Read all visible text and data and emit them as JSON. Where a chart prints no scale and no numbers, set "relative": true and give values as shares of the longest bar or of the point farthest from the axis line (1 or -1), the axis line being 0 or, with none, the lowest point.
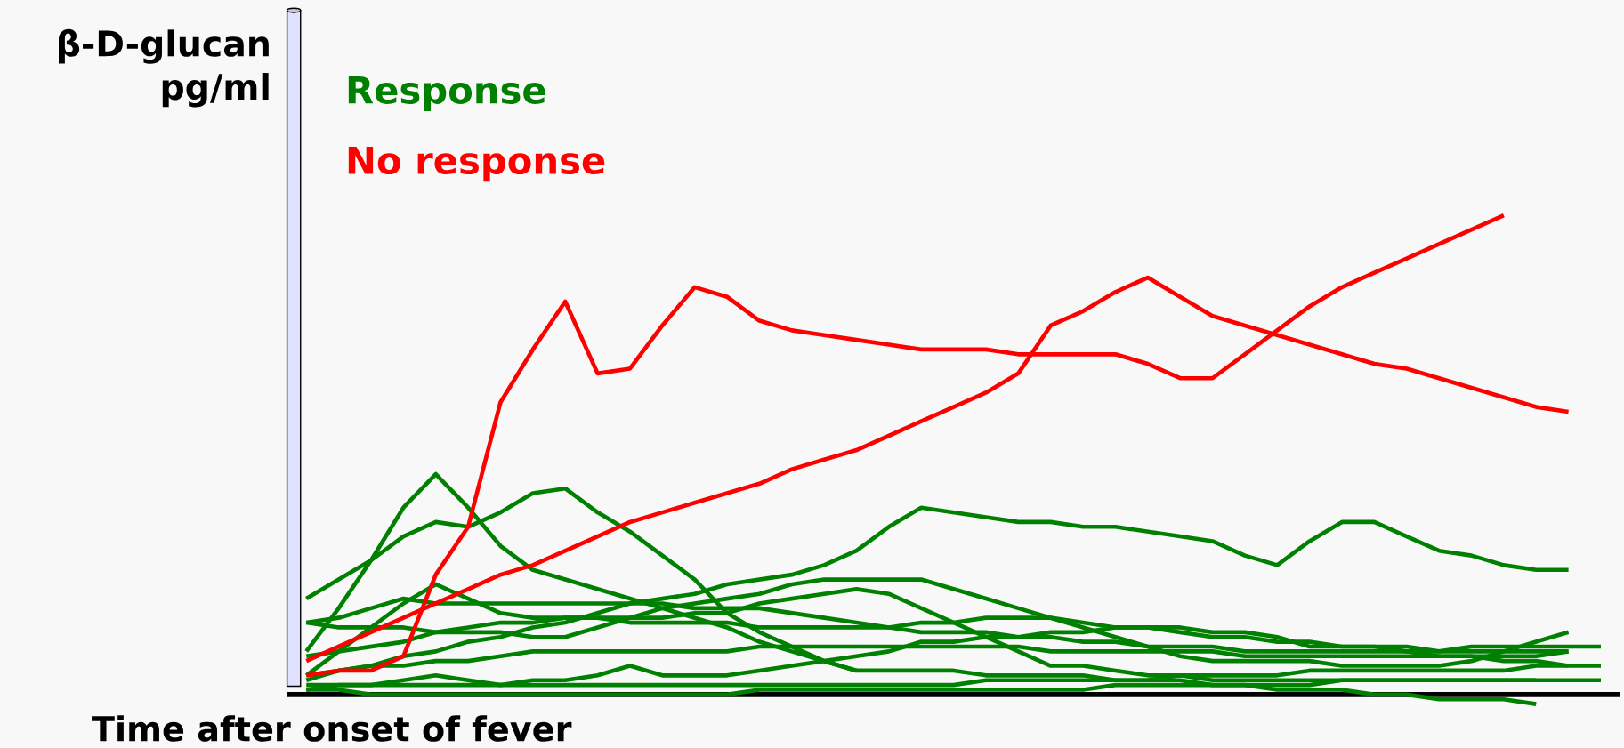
{
  "chart_data": {
    "type": "line",
    "relative": true,
    "xlabel": "Time after onset of fever",
    "ylabel": "β-D-glucan pg/ml",
    "marker": "none",
    "line_style": "solid",
    "categories": [
      null,
      null,
      null,
      null,
      null,
      null,
      null,
      null,
      null,
      null,
      null,
      null,
      null,
      null,
      null,
      null,
      null,
      null,
      null,
      null,
      null,
      null,
      null,
      null,
      null,
      null,
      null,
      null,
      null,
      null,
      null,
      null,
      null,
      null,
      null,
      null,
      null,
      null,
      null,
      null,
      null
    ],
    "series": [
      {
        "name": "Response",
        "color": "#008000",
        "values": [
          0.2,
          0.24,
          0.28,
          0.33,
          0.36,
          0.35,
          0.38,
          0.42,
          0.43,
          0.38,
          0.34,
          0.29,
          0.24,
          0.17,
          0.13,
          0.1,
          0.07,
          0.05,
          null,
          null,
          null,
          null,
          null,
          null,
          null,
          null,
          null,
          null,
          null,
          null,
          null,
          null,
          null,
          null,
          null,
          null,
          null,
          null,
          null,
          null,
          null
        ]
      },
      {
        "color": "#008000",
        "values": [
          0.09,
          0.18,
          0.28,
          0.39,
          0.46,
          0.39,
          0.31,
          0.26,
          0.24,
          0.22,
          0.2,
          0.18,
          0.16,
          0.14,
          0.11,
          0.09,
          0.07,
          0.05,
          0.05,
          0.05,
          0.05,
          0.04,
          0.04,
          0.04,
          0.04,
          0.03,
          0.03,
          0.03,
          0.02,
          0.02,
          0.01,
          0.01,
          0.01,
          0,
          0,
          -0.01,
          -0.01,
          -0.01,
          -0.02,
          null,
          null
        ]
      },
      {
        "color": "#008000",
        "values": [
          0.03,
          0.05,
          0.06,
          0.08,
          0.09,
          0.11,
          0.12,
          0.14,
          0.15,
          0.17,
          0.19,
          0.2,
          0.21,
          0.23,
          0.24,
          0.25,
          0.27,
          0.3,
          0.35,
          0.39,
          0.38,
          0.37,
          0.36,
          0.36,
          0.35,
          0.35,
          0.34,
          0.33,
          0.32,
          0.29,
          0.27,
          0.32,
          0.36,
          0.36,
          0.33,
          0.3,
          0.29,
          0.27,
          0.26,
          0.26,
          null
        ]
      },
      {
        "color": "#008000",
        "values": [
          0.15,
          0.16,
          0.18,
          0.2,
          0.19,
          0.19,
          0.19,
          0.19,
          0.19,
          0.19,
          0.19,
          0.19,
          0.18,
          0.18,
          0.18,
          0.17,
          0.16,
          0.15,
          0.14,
          0.15,
          0.15,
          0.16,
          0.16,
          0.16,
          0.15,
          0.14,
          0.14,
          0.13,
          0.12,
          0.12,
          0.11,
          0.11,
          0.1,
          0.1,
          0.09,
          0.08,
          0.08,
          0.07,
          0.07,
          0.06,
          null
        ]
      },
      {
        "color": "#008000",
        "values": [
          0.04,
          0.09,
          0.14,
          0.19,
          0.23,
          0.2,
          0.17,
          0.16,
          0.16,
          0.16,
          0.15,
          0.15,
          0.15,
          0.15,
          0.14,
          0.14,
          0.14,
          0.14,
          0.14,
          0.13,
          0.13,
          0.13,
          0.12,
          0.12,
          0.11,
          0.11,
          0.1,
          0.1,
          0.1,
          0.09,
          0.09,
          0.09,
          0.09,
          0.09,
          0.09,
          0.09,
          0.09,
          0.09,
          0.09,
          0.09,
          null
        ]
      },
      {
        "color": "#008000",
        "values": [
          0.15,
          0.14,
          0.14,
          0.14,
          0.13,
          0.13,
          0.13,
          0.12,
          0.12,
          0.14,
          0.16,
          0.18,
          0.19,
          0.2,
          0.21,
          0.23,
          0.24,
          0.24,
          0.24,
          0.24,
          0.22,
          0.2,
          0.18,
          0.16,
          0.14,
          0.12,
          0.1,
          0.08,
          0.07,
          0.07,
          0.07,
          0.07,
          0.06,
          0.06,
          0.06,
          0.06,
          0.07,
          0.09,
          0.11,
          0.13,
          null
        ]
      },
      {
        "color": "#008000",
        "values": [
          0.08,
          0.09,
          0.1,
          0.11,
          0.13,
          0.14,
          0.15,
          0.15,
          0.16,
          0.16,
          0.16,
          0.16,
          0.17,
          0.17,
          0.19,
          0.2,
          0.21,
          0.22,
          0.21,
          0.18,
          0.15,
          0.12,
          0.09,
          0.06,
          0.06,
          0.05,
          0.04,
          0.04,
          0.03,
          0.03,
          0.03,
          0.03,
          0.03,
          0.03,
          0.03,
          0.03,
          0.03,
          0.03,
          0.03,
          null,
          null
        ]
      },
      {
        "color": "#008000",
        "values": [
          0.01,
          0.02,
          0.02,
          0.03,
          0.04,
          0.03,
          0.02,
          0.03,
          0.03,
          0.04,
          0.06,
          0.04,
          0.04,
          0.04,
          0.05,
          0.06,
          0.07,
          0.08,
          0.09,
          0.11,
          0.11,
          0.12,
          0.12,
          0.13,
          0.13,
          0.14,
          0.14,
          0.14,
          0.13,
          0.13,
          0.12,
          0.1,
          0.1,
          0.1,
          0.1,
          0.09,
          0.1,
          0.1,
          0.1,
          0.1,
          0.1
        ]
      },
      {
        "color": "#008000",
        "values": [
          0.02,
          0.02,
          0.02,
          0.02,
          0.02,
          0.02,
          0.02,
          0.02,
          0.02,
          0.02,
          0.02,
          0.02,
          0.02,
          0.02,
          0.02,
          0.02,
          0.02,
          0.02,
          0.02,
          0.02,
          0.02,
          0.03,
          0.03,
          0.03,
          0.03,
          0.03,
          0.03,
          0.04,
          0.04,
          0.04,
          0.04,
          0.05,
          0.05,
          0.05,
          0.05,
          0.05,
          0.05,
          0.05,
          0.06,
          0.06,
          0.06
        ]
      },
      {
        "color": "#008000",
        "values": [
          0.01,
          0.01,
          0,
          0,
          0,
          0,
          0,
          0,
          0,
          0,
          0,
          0,
          0,
          0,
          0.01,
          0.01,
          0.01,
          0.01,
          0.01,
          0.01,
          0.01,
          0.01,
          0.01,
          0.01,
          0.01,
          0.02,
          0.02,
          0.02,
          0.02,
          0.02,
          0.02,
          0.02,
          0.03,
          0.03,
          0.03,
          0.03,
          0.03,
          0.03,
          0.03,
          0.03,
          0.03
        ]
      },
      {
        "color": "#008000",
        "values": [
          0.04,
          0.05,
          0.06,
          0.06,
          0.07,
          0.07,
          0.08,
          0.09,
          0.09,
          0.09,
          0.09,
          0.09,
          0.09,
          0.09,
          0.1,
          0.1,
          0.1,
          0.1,
          0.1,
          0.1,
          0.1,
          0.1,
          0.1,
          0.09,
          0.09,
          0.09,
          0.09,
          0.09,
          0.09,
          0.08,
          0.08,
          0.08,
          0.08,
          0.08,
          0.08,
          0.08,
          0.08,
          0.08,
          0.08,
          0.09,
          null
        ]
      },
      {
        "name": "No response",
        "color": "#ff0000",
        "values": [
          0.04,
          0.05,
          0.05,
          0.08,
          0.25,
          0.35,
          0.61,
          0.72,
          0.82,
          0.67,
          0.68,
          0.77,
          0.85,
          0.83,
          0.78,
          0.76,
          0.75,
          0.74,
          0.73,
          0.72,
          0.72,
          0.72,
          0.71,
          0.71,
          0.71,
          0.71,
          0.69,
          0.66,
          0.66,
          0.71,
          0.76,
          0.81,
          0.85,
          0.88,
          0.91,
          0.94,
          0.97,
          1.0,
          null,
          null,
          null
        ]
      },
      {
        "color": "#ff0000",
        "values": [
          0.07,
          0.1,
          0.13,
          0.16,
          0.19,
          0.22,
          0.25,
          0.27,
          0.3,
          0.33,
          0.36,
          0.38,
          0.4,
          0.42,
          0.44,
          0.47,
          0.49,
          0.51,
          0.54,
          0.57,
          0.6,
          0.63,
          0.67,
          0.77,
          0.8,
          0.84,
          0.87,
          0.83,
          0.79,
          0.77,
          0.75,
          0.73,
          0.71,
          0.69,
          0.68,
          0.66,
          0.64,
          0.62,
          0.6,
          0.59,
          null
        ]
      }
    ]
  }
}
